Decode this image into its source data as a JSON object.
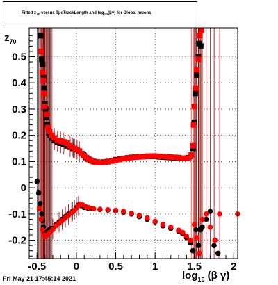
{
  "title": "Fitted z_{70} versus TpcTrackLength and log_{10}(βγ) for Global muons",
  "timestamp": "Fri May 21 17:45:14 2021",
  "chart_data": {
    "type": "scatter",
    "title": "Fitted z_{70} versus TpcTrackLength and log_{10}(βγ) for Global muons",
    "xlabel": "log_{10}(βγ)",
    "ylabel": "z_{70}",
    "xlim": [
      -0.6,
      2.05
    ],
    "ylim": [
      -0.27,
      0.61
    ],
    "grid": true,
    "x_ticks": [
      -0.5,
      0,
      0.5,
      1,
      1.5,
      2
    ],
    "x_tick_labels": [
      "-0.5",
      "0",
      "0.5",
      "1",
      "1.5",
      "2"
    ],
    "y_ticks": [
      -0.2,
      -0.1,
      0,
      0.1,
      0.2,
      0.3,
      0.4,
      0.5
    ],
    "y_tick_labels": [
      "-0.2",
      "-0.1",
      "0",
      "0.1",
      "0.2",
      "0.3",
      "0.4",
      "0.5"
    ],
    "series": [
      {
        "name": "",
        "color": "#000000",
        "marker": "square",
        "points": [
          [
            -0.45,
            0.58
          ],
          [
            -0.44,
            0.49
          ],
          [
            -0.43,
            0.47
          ],
          [
            -0.42,
            0.42
          ],
          [
            -0.41,
            0.38
          ],
          [
            -0.4,
            0.32
          ],
          [
            -0.39,
            0.3
          ],
          [
            -0.38,
            0.27
          ],
          [
            -0.37,
            0.24
          ],
          [
            -0.35,
            0.21
          ],
          [
            -0.33,
            0.2
          ],
          [
            -0.31,
            0.19
          ],
          [
            -0.28,
            0.18
          ],
          [
            -0.24,
            0.175
          ],
          [
            -0.2,
            0.17
          ],
          [
            -0.16,
            0.165
          ],
          [
            -0.12,
            0.16
          ],
          [
            -0.08,
            0.155
          ],
          [
            -0.04,
            0.15
          ],
          [
            0.0,
            0.145
          ],
          [
            0.03,
            0.14
          ],
          [
            0.06,
            0.13
          ],
          [
            0.09,
            0.125
          ],
          [
            0.12,
            0.115
          ],
          [
            0.15,
            0.11
          ],
          [
            0.18,
            0.105
          ],
          [
            0.22,
            0.1
          ],
          [
            0.26,
            0.098
          ],
          [
            0.3,
            0.097
          ],
          [
            0.35,
            0.098
          ],
          [
            0.4,
            0.1
          ],
          [
            0.45,
            0.103
          ],
          [
            0.5,
            0.107
          ],
          [
            0.55,
            0.11
          ],
          [
            0.6,
            0.112
          ],
          [
            0.65,
            0.114
          ],
          [
            0.7,
            0.116
          ],
          [
            0.75,
            0.117
          ],
          [
            0.8,
            0.118
          ],
          [
            0.85,
            0.119
          ],
          [
            0.9,
            0.12
          ],
          [
            0.95,
            0.12
          ],
          [
            1.0,
            0.12
          ],
          [
            1.05,
            0.118
          ],
          [
            1.1,
            0.117
          ],
          [
            1.15,
            0.116
          ],
          [
            1.2,
            0.115
          ],
          [
            1.25,
            0.114
          ],
          [
            1.3,
            0.113
          ],
          [
            1.35,
            0.112
          ],
          [
            1.4,
            0.112
          ],
          [
            1.45,
            0.12
          ],
          [
            1.48,
            0.15
          ],
          [
            1.5,
            0.25
          ],
          [
            1.51,
            0.36
          ],
          [
            1.53,
            0.43
          ],
          [
            1.55,
            0.5
          ],
          [
            1.56,
            0.55
          ],
          [
            1.58,
            0.54
          ]
        ]
      },
      {
        "name": "",
        "color": "#ff0000",
        "marker": "square",
        "points": [
          [
            -0.45,
            0.52
          ],
          [
            -0.43,
            0.44
          ],
          [
            -0.42,
            0.41
          ],
          [
            -0.41,
            0.36
          ],
          [
            -0.4,
            0.31
          ],
          [
            -0.38,
            0.28
          ],
          [
            -0.36,
            0.23
          ],
          [
            -0.34,
            0.215
          ],
          [
            -0.31,
            0.2
          ],
          [
            -0.28,
            0.19
          ],
          [
            -0.24,
            0.18
          ],
          [
            -0.2,
            0.178
          ],
          [
            -0.16,
            0.175
          ],
          [
            -0.12,
            0.17
          ],
          [
            -0.08,
            0.16
          ],
          [
            -0.05,
            0.155
          ],
          [
            -0.02,
            0.15
          ],
          [
            0.01,
            0.145
          ],
          [
            0.04,
            0.14
          ],
          [
            0.07,
            0.13
          ],
          [
            0.1,
            0.122
          ],
          [
            0.13,
            0.115
          ],
          [
            0.16,
            0.108
          ],
          [
            0.2,
            0.102
          ],
          [
            0.24,
            0.098
          ],
          [
            0.28,
            0.097
          ],
          [
            0.32,
            0.097
          ],
          [
            0.36,
            0.098
          ],
          [
            0.4,
            0.099
          ],
          [
            0.45,
            0.102
          ],
          [
            0.5,
            0.105
          ],
          [
            0.55,
            0.108
          ],
          [
            0.6,
            0.111
          ],
          [
            0.65,
            0.113
          ],
          [
            0.7,
            0.115
          ],
          [
            0.75,
            0.117
          ],
          [
            0.8,
            0.118
          ],
          [
            0.85,
            0.119
          ],
          [
            0.9,
            0.12
          ],
          [
            0.95,
            0.121
          ],
          [
            1.0,
            0.121
          ],
          [
            1.05,
            0.12
          ],
          [
            1.1,
            0.119
          ],
          [
            1.15,
            0.118
          ],
          [
            1.2,
            0.117
          ],
          [
            1.25,
            0.116
          ],
          [
            1.3,
            0.115
          ],
          [
            1.35,
            0.113
          ],
          [
            1.4,
            0.113
          ],
          [
            1.43,
            0.115
          ],
          [
            1.46,
            0.125
          ],
          [
            1.48,
            0.16
          ],
          [
            1.49,
            0.24
          ],
          [
            1.5,
            0.31
          ],
          [
            1.52,
            0.38
          ],
          [
            1.53,
            0.45
          ],
          [
            1.55,
            0.49
          ],
          [
            1.57,
            0.58
          ],
          [
            1.59,
            0.6
          ]
        ]
      },
      {
        "name": "",
        "color": "#000000",
        "marker": "circle",
        "points": [
          [
            -0.5,
            0.025
          ],
          [
            -0.48,
            -0.02
          ],
          [
            -0.46,
            -0.06
          ],
          [
            -0.44,
            -0.1
          ],
          [
            -0.43,
            -0.125
          ],
          [
            -0.42,
            -0.15
          ],
          [
            -0.4,
            -0.17
          ],
          [
            -0.38,
            -0.175
          ],
          [
            -0.36,
            -0.165
          ],
          [
            -0.34,
            -0.16
          ],
          [
            -0.32,
            -0.155
          ],
          [
            -0.3,
            -0.155
          ],
          [
            -0.26,
            -0.14
          ],
          [
            -0.22,
            -0.13
          ],
          [
            -0.18,
            -0.12
          ],
          [
            -0.14,
            -0.11
          ],
          [
            -0.1,
            -0.1
          ],
          [
            -0.05,
            -0.09
          ],
          [
            0.0,
            -0.075
          ],
          [
            0.03,
            -0.065
          ],
          [
            0.06,
            -0.068
          ],
          [
            0.1,
            -0.075
          ],
          [
            0.15,
            -0.078
          ],
          [
            0.2,
            -0.08
          ],
          [
            0.3,
            -0.083
          ],
          [
            0.4,
            -0.085
          ],
          [
            0.5,
            -0.088
          ],
          [
            0.6,
            -0.093
          ],
          [
            0.7,
            -0.1
          ],
          [
            0.8,
            -0.11
          ],
          [
            0.9,
            -0.12
          ],
          [
            1.0,
            -0.13
          ],
          [
            1.1,
            -0.145
          ],
          [
            1.2,
            -0.155
          ],
          [
            1.3,
            -0.165
          ],
          [
            1.35,
            -0.175
          ],
          [
            1.4,
            -0.19
          ],
          [
            1.45,
            -0.21
          ],
          [
            1.48,
            -0.24
          ],
          [
            1.52,
            -0.16
          ],
          [
            1.55,
            -0.22
          ],
          [
            1.58,
            -0.16
          ],
          [
            1.6,
            -0.15
          ],
          [
            1.65,
            -0.12
          ],
          [
            1.7,
            -0.09
          ],
          [
            1.75,
            -0.22
          ],
          [
            1.8,
            -0.25
          ]
        ]
      },
      {
        "name": "",
        "color": "#ff0000",
        "marker": "circle",
        "points": [
          [
            -0.47,
            -0.08
          ],
          [
            -0.45,
            -0.12
          ],
          [
            -0.43,
            -0.16
          ],
          [
            -0.41,
            -0.18
          ],
          [
            -0.39,
            -0.185
          ],
          [
            -0.37,
            -0.18
          ],
          [
            -0.34,
            -0.17
          ],
          [
            -0.3,
            -0.16
          ],
          [
            -0.26,
            -0.145
          ],
          [
            -0.22,
            -0.135
          ],
          [
            -0.18,
            -0.125
          ],
          [
            -0.14,
            -0.115
          ],
          [
            -0.1,
            -0.105
          ],
          [
            -0.06,
            -0.095
          ],
          [
            -0.02,
            -0.085
          ],
          [
            0.02,
            -0.07
          ],
          [
            0.05,
            -0.062
          ],
          [
            0.08,
            -0.065
          ],
          [
            0.12,
            -0.072
          ],
          [
            0.16,
            -0.076
          ],
          [
            0.22,
            -0.08
          ],
          [
            0.3,
            -0.082
          ],
          [
            0.4,
            -0.084
          ],
          [
            0.5,
            -0.086
          ],
          [
            0.6,
            -0.09
          ],
          [
            0.7,
            -0.097
          ],
          [
            0.8,
            -0.105
          ],
          [
            0.9,
            -0.115
          ],
          [
            1.0,
            -0.128
          ],
          [
            1.1,
            -0.14
          ],
          [
            1.2,
            -0.15
          ],
          [
            1.3,
            -0.162
          ],
          [
            1.35,
            -0.17
          ],
          [
            1.4,
            -0.185
          ],
          [
            1.45,
            -0.2
          ],
          [
            1.5,
            -0.14
          ],
          [
            1.53,
            -0.19
          ],
          [
            1.56,
            -0.25
          ],
          [
            1.6,
            -0.12
          ],
          [
            1.65,
            -0.1
          ],
          [
            1.7,
            -0.15
          ],
          [
            1.76,
            -0.2
          ],
          [
            1.82,
            -0.1
          ],
          [
            2.05,
            -0.1
          ]
        ]
      }
    ]
  }
}
